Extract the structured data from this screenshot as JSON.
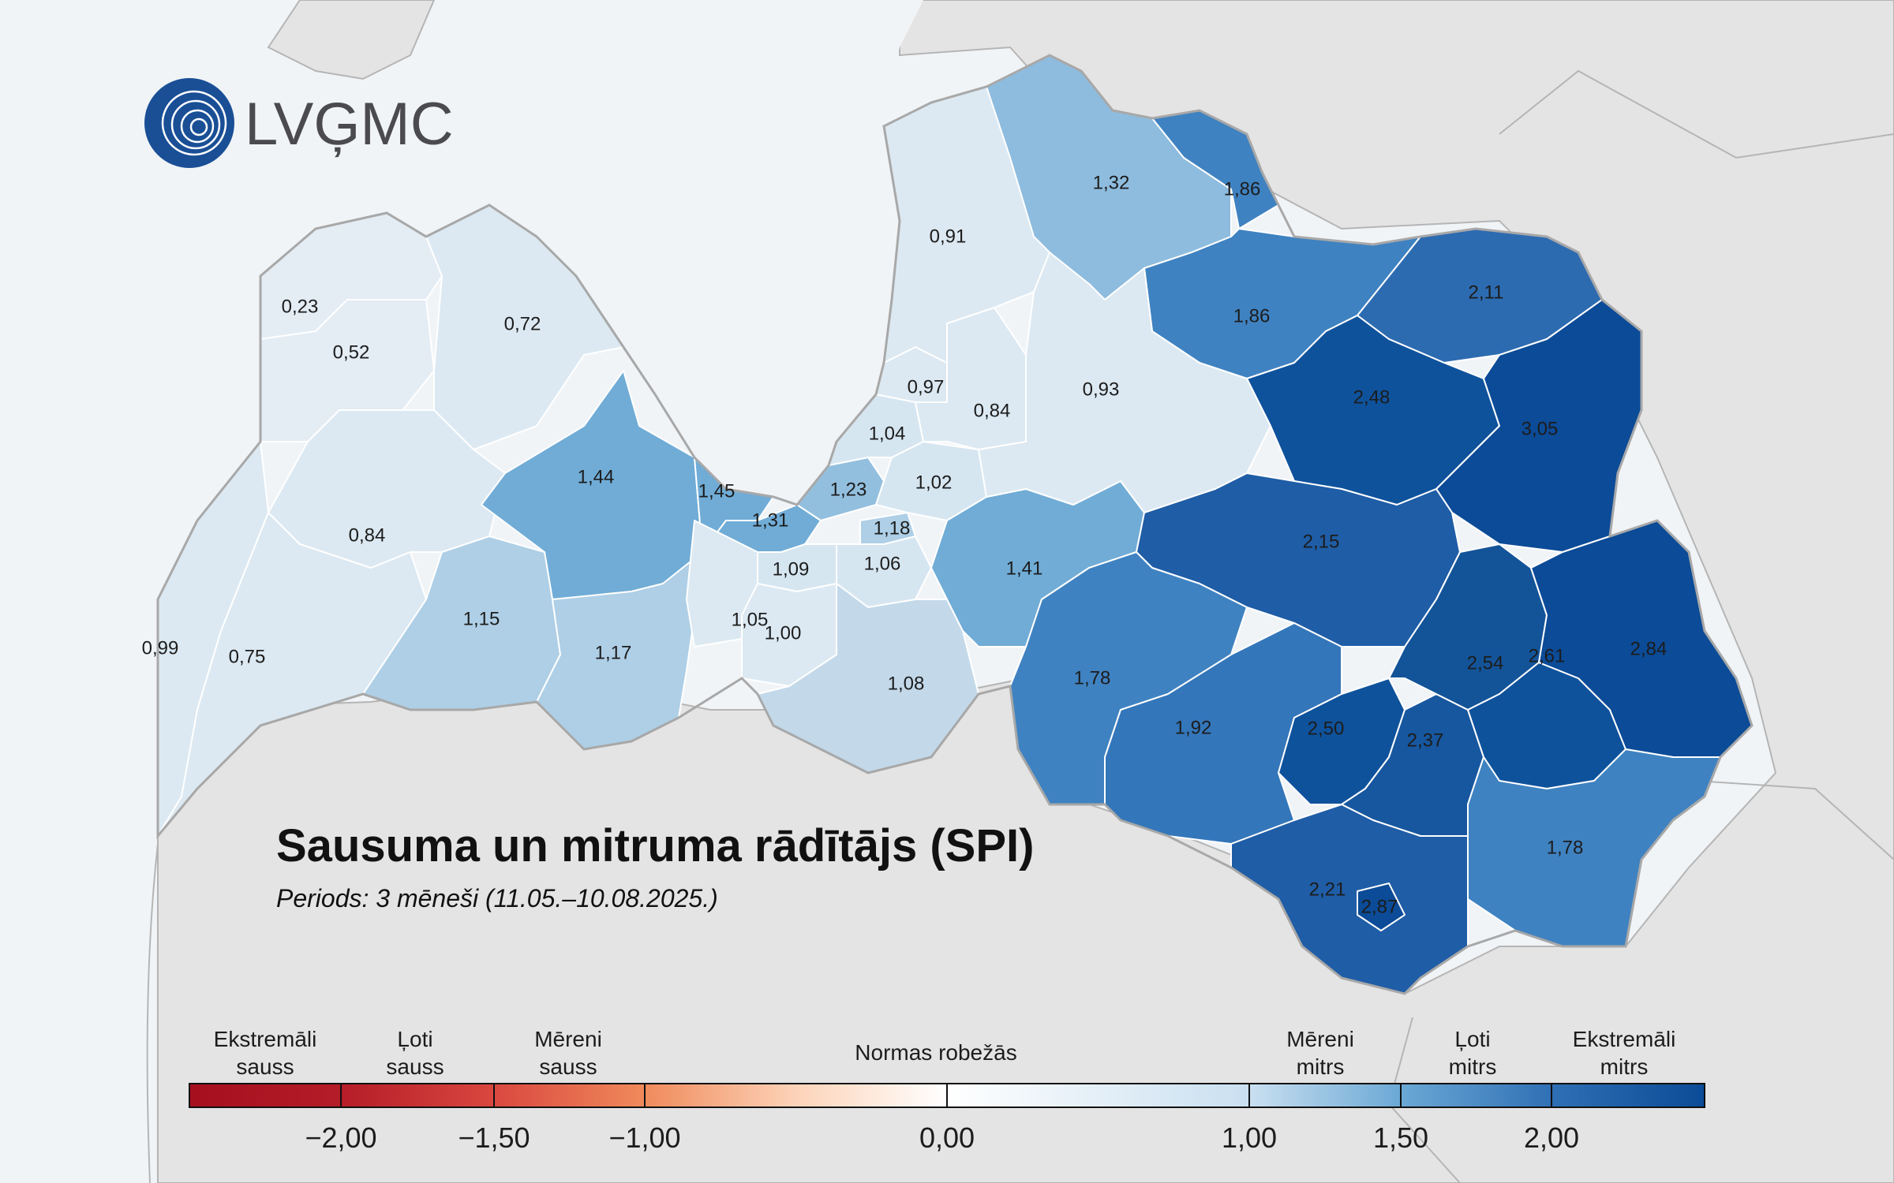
{
  "logo": {
    "text": "LVĢMC"
  },
  "title": "Sausuma un mitruma rādītājs (SPI)",
  "subtitle": "Periods: 3 mēneši (11.05.–10.08.2025.)",
  "colors": {
    "sea": "#f1f4f7",
    "land": "#e4e4e4",
    "border": "#ababab",
    "spi_min": "#e4ecf4",
    "spi_mid": "#c3d9ea",
    "spi_110": "#aecfe6",
    "spi_140": "#70acd6",
    "spi_180": "#3f82c1",
    "spi_190": "#2f6fb4",
    "spi_200": "#1f5da6",
    "spi_max": "#0b4b97"
  },
  "regions": [
    {
      "value": "0,23"
    },
    {
      "value": "0,52"
    },
    {
      "value": "0,72"
    },
    {
      "value": "0,84"
    },
    {
      "value": "0,99"
    },
    {
      "value": "0,75"
    },
    {
      "value": "1,44"
    },
    {
      "value": "1,15"
    },
    {
      "value": "1,17"
    },
    {
      "value": "1,45"
    },
    {
      "value": "1,31"
    },
    {
      "value": "1,23"
    },
    {
      "value": "1,04"
    },
    {
      "value": "0,97"
    },
    {
      "value": "0,84"
    },
    {
      "value": "1,02"
    },
    {
      "value": "1,18"
    },
    {
      "value": "1,09"
    },
    {
      "value": "1,06"
    },
    {
      "value": "1,05"
    },
    {
      "value": "1,00"
    },
    {
      "value": "1,08"
    },
    {
      "value": "1,41"
    },
    {
      "value": "0,91"
    },
    {
      "value": "1,32"
    },
    {
      "value": "1,86"
    },
    {
      "value": "1,86"
    },
    {
      "value": "2,11"
    },
    {
      "value": "0,93"
    },
    {
      "value": "2,48"
    },
    {
      "value": "3,05"
    },
    {
      "value": "2,15"
    },
    {
      "value": "1,78"
    },
    {
      "value": "1,92"
    },
    {
      "value": "2,50"
    },
    {
      "value": "2,37"
    },
    {
      "value": "2,54"
    },
    {
      "value": "2,61"
    },
    {
      "value": "2,84"
    },
    {
      "value": "1,78"
    },
    {
      "value": "2,21"
    },
    {
      "value": "2,87"
    }
  ],
  "legend": {
    "categories": [
      {
        "line1": "Ekstremāli",
        "line2": "sauss"
      },
      {
        "line1": "Ļoti",
        "line2": "sauss"
      },
      {
        "line1": "Mēreni",
        "line2": "sauss"
      },
      {
        "line1": "Normas robežās",
        "line2": ""
      },
      {
        "line1": "Mēreni",
        "line2": "mitrs"
      },
      {
        "line1": "Ļoti",
        "line2": "mitrs"
      },
      {
        "line1": "Ekstremāli",
        "line2": "mitrs"
      }
    ],
    "ticks": [
      "−2,00",
      "−1,50",
      "−1,00",
      "0,00",
      "1,00",
      "1,50",
      "2,00"
    ]
  }
}
